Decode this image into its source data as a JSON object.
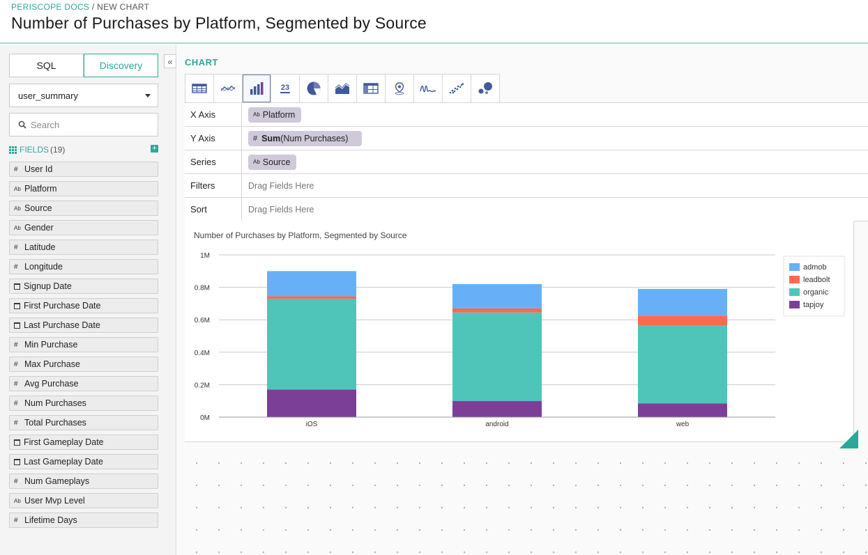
{
  "header": {
    "breadcrumb_link": "PERISCOPE DOCS",
    "breadcrumb_sep": " / ",
    "breadcrumb_current": "NEW CHART",
    "title": "Number of Purchases by Platform, Segmented by Source"
  },
  "sidebar": {
    "tabs": [
      {
        "label": "SQL",
        "active": false
      },
      {
        "label": "Discovery",
        "active": true
      }
    ],
    "collapse_glyph": "«",
    "dataset": "user_summary",
    "search_placeholder": "Search",
    "fields_label": "FIELDS",
    "fields_count": "(19)",
    "fields": [
      {
        "type": "number",
        "label": "User Id"
      },
      {
        "type": "text",
        "label": "Platform"
      },
      {
        "type": "text",
        "label": "Source"
      },
      {
        "type": "text",
        "label": "Gender"
      },
      {
        "type": "number",
        "label": "Latitude"
      },
      {
        "type": "number",
        "label": "Longitude"
      },
      {
        "type": "date",
        "label": "Signup Date"
      },
      {
        "type": "date",
        "label": "First Purchase Date"
      },
      {
        "type": "date",
        "label": "Last Purchase Date"
      },
      {
        "type": "number",
        "label": "Min Purchase"
      },
      {
        "type": "number",
        "label": "Max Purchase"
      },
      {
        "type": "number",
        "label": "Avg Purchase"
      },
      {
        "type": "number",
        "label": "Num Purchases"
      },
      {
        "type": "number",
        "label": "Total Purchases"
      },
      {
        "type": "date",
        "label": "First Gameplay Date"
      },
      {
        "type": "date",
        "label": "Last Gameplay Date"
      },
      {
        "type": "number",
        "label": "Num Gameplays"
      },
      {
        "type": "text",
        "label": "User Mvp Level"
      },
      {
        "type": "number",
        "label": "Lifetime Days"
      }
    ]
  },
  "main": {
    "chart_section_label": "CHART",
    "chart_types": [
      "table-icon",
      "line-chart-icon",
      "bar-chart-icon",
      "number-icon",
      "pie-chart-icon",
      "area-chart-icon",
      "pivot-table-icon",
      "map-pin-icon",
      "scribble-icon",
      "scatter-icon",
      "bubble-icon"
    ],
    "active_chart_type": "bar-chart-icon",
    "number_icon_text": "23",
    "config": {
      "x_axis_label": "X Axis",
      "x_axis_type": "Ab",
      "x_axis_field": "Platform",
      "y_axis_label": "Y Axis",
      "y_axis_type": "#",
      "y_axis_agg": "Sum",
      "y_axis_field": "(Num Purchases)",
      "series_label": "Series",
      "series_type": "Ab",
      "series_field": "Source",
      "filters_label": "Filters",
      "filters_placeholder": "Drag Fields Here",
      "sort_label": "Sort",
      "sort_placeholder": "Drag Fields Here"
    }
  },
  "type_glyphs": {
    "number": "#",
    "text": "Ab"
  },
  "chart_data": {
    "type": "bar",
    "stacked": true,
    "title": "Number of Purchases by Platform, Segmented by Source",
    "categories": [
      "iOS",
      "android",
      "web"
    ],
    "series": [
      {
        "name": "tapjoy",
        "color": "#7b3f98",
        "values": [
          170000,
          100000,
          85000
        ]
      },
      {
        "name": "organic",
        "color": "#4fc5ba",
        "values": [
          560000,
          545000,
          480000
        ]
      },
      {
        "name": "leadbolt",
        "color": "#ff6a4a",
        "values": [
          15000,
          25000,
          60000
        ]
      },
      {
        "name": "admob",
        "color": "#67b0f8",
        "values": [
          155000,
          150000,
          165000
        ]
      }
    ],
    "legend_order": [
      "admob",
      "leadbolt",
      "organic",
      "tapjoy"
    ],
    "yticks": [
      0,
      200000,
      400000,
      600000,
      800000,
      1000000
    ],
    "ytick_labels": [
      "0M",
      "0.2M",
      "0.4M",
      "0.6M",
      "0.8M",
      "1M"
    ],
    "ylim": [
      0,
      1000000
    ],
    "grid": true,
    "legend_position": "right"
  }
}
